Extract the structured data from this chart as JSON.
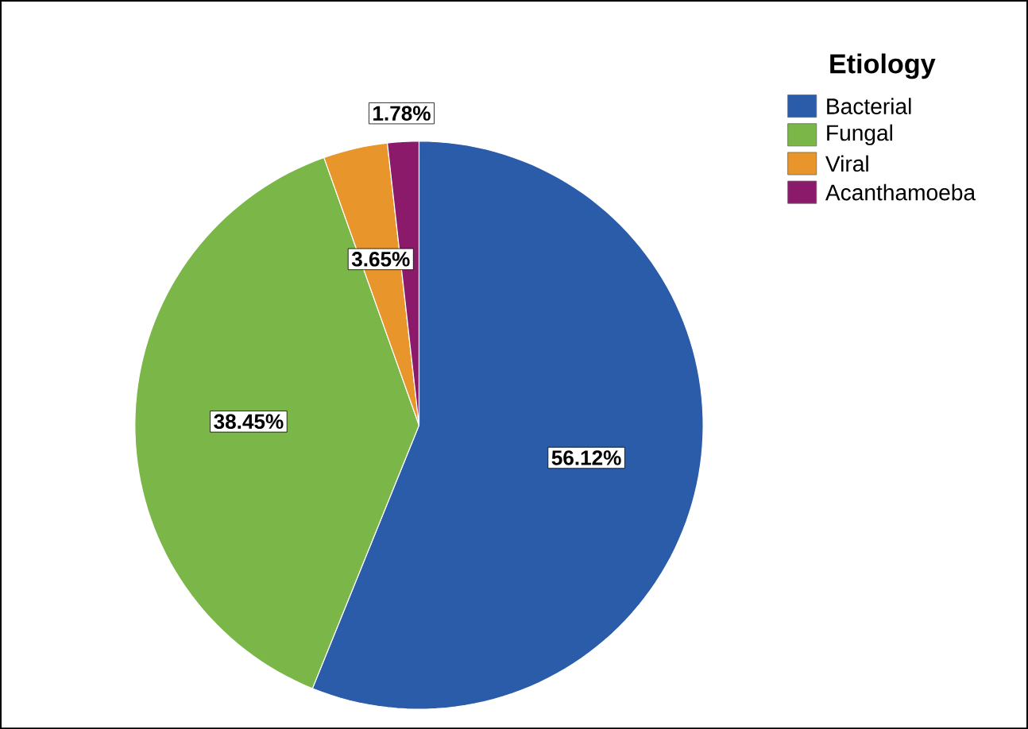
{
  "chart_data": {
    "type": "pie",
    "legend_title": "Etiology",
    "categories": [
      "Bacterial",
      "Fungal",
      "Viral",
      "Acanthamoeba"
    ],
    "values": [
      56.12,
      38.45,
      3.65,
      1.78
    ],
    "colors": [
      "#2a5caa",
      "#7ab648",
      "#e8962c",
      "#8b1a6b"
    ],
    "value_labels": [
      "56.12%",
      "38.45%",
      "3.65%",
      "1.78%"
    ],
    "legend": "top right"
  }
}
